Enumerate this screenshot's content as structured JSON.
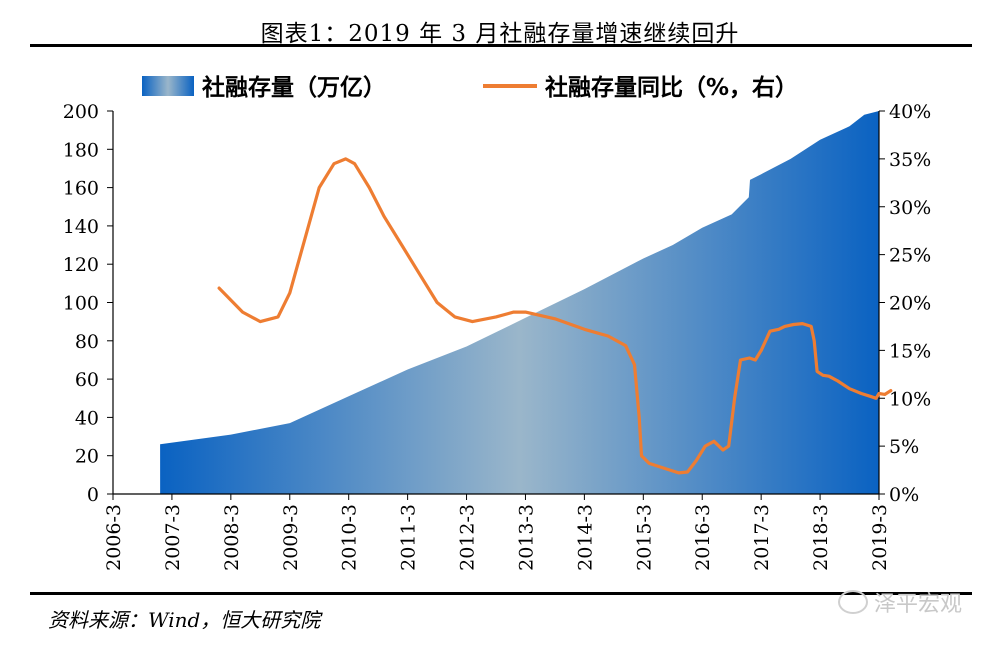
{
  "title": "图表1：2019 年 3 月社融存量增速继续回升",
  "source": "资料来源：Wind，恒大研究院",
  "watermark": "泽平宏观",
  "colors": {
    "area_dark": "#0a62c2",
    "area_light": "#9ab6ca",
    "line": "#ee7d32"
  },
  "chart_data": {
    "type": "area+line",
    "x_ticks": [
      "2006-3",
      "2007-3",
      "2008-3",
      "2009-3",
      "2010-3",
      "2011-3",
      "2012-3",
      "2013-3",
      "2014-3",
      "2015-3",
      "2016-3",
      "2017-3",
      "2018-3",
      "2019-3"
    ],
    "y_left": {
      "ylim": [
        0,
        200
      ],
      "ticks": [
        "0",
        "20",
        "40",
        "60",
        "80",
        "100",
        "120",
        "140",
        "160",
        "180",
        "200"
      ]
    },
    "y_right": {
      "ylim": [
        0,
        40
      ],
      "ticks": [
        "0%",
        "5%",
        "10%",
        "15%",
        "20%",
        "25%",
        "30%",
        "35%",
        "40%"
      ]
    },
    "legend_placement": "top",
    "series": [
      {
        "name": "社融存量（万亿）",
        "axis": "left",
        "kind": "area",
        "points": [
          [
            2006.8,
            26
          ],
          [
            2008.0,
            31
          ],
          [
            2009.0,
            37
          ],
          [
            2010.0,
            51
          ],
          [
            2011.0,
            65
          ],
          [
            2012.0,
            77
          ],
          [
            2013.0,
            92
          ],
          [
            2014.0,
            107
          ],
          [
            2015.0,
            123
          ],
          [
            2015.5,
            130
          ],
          [
            2016.0,
            139
          ],
          [
            2016.5,
            146
          ],
          [
            2016.79,
            155
          ],
          [
            2016.81,
            164
          ],
          [
            2017.0,
            167
          ],
          [
            2017.5,
            175
          ],
          [
            2018.0,
            185
          ],
          [
            2018.5,
            192
          ],
          [
            2018.75,
            198
          ],
          [
            2019.0,
            200
          ]
        ]
      },
      {
        "name": "社融存量同比（%，右）",
        "axis": "right",
        "kind": "line",
        "points": [
          [
            2007.8,
            21.5
          ],
          [
            2008.2,
            19.0
          ],
          [
            2008.5,
            18.0
          ],
          [
            2008.8,
            18.5
          ],
          [
            2009.0,
            21.0
          ],
          [
            2009.25,
            26.5
          ],
          [
            2009.5,
            32.0
          ],
          [
            2009.75,
            34.5
          ],
          [
            2009.95,
            35.0
          ],
          [
            2010.1,
            34.5
          ],
          [
            2010.35,
            32.0
          ],
          [
            2010.6,
            29.0
          ],
          [
            2010.9,
            26.0
          ],
          [
            2011.2,
            23.0
          ],
          [
            2011.5,
            20.0
          ],
          [
            2011.8,
            18.5
          ],
          [
            2012.1,
            18.0
          ],
          [
            2012.5,
            18.5
          ],
          [
            2012.8,
            19.0
          ],
          [
            2013.0,
            19.0
          ],
          [
            2013.5,
            18.3
          ],
          [
            2014.0,
            17.2
          ],
          [
            2014.4,
            16.5
          ],
          [
            2014.7,
            15.5
          ],
          [
            2014.85,
            13.5
          ],
          [
            2014.93,
            8.0
          ],
          [
            2014.97,
            4.0
          ],
          [
            2015.1,
            3.2
          ],
          [
            2015.4,
            2.6
          ],
          [
            2015.6,
            2.2
          ],
          [
            2015.75,
            2.3
          ],
          [
            2015.9,
            3.5
          ],
          [
            2016.05,
            5.0
          ],
          [
            2016.2,
            5.5
          ],
          [
            2016.35,
            4.6
          ],
          [
            2016.45,
            5.0
          ],
          [
            2016.55,
            10.0
          ],
          [
            2016.65,
            14.0
          ],
          [
            2016.8,
            14.2
          ],
          [
            2016.9,
            14.0
          ],
          [
            2017.0,
            15.0
          ],
          [
            2017.15,
            17.0
          ],
          [
            2017.3,
            17.2
          ],
          [
            2017.4,
            17.5
          ],
          [
            2017.55,
            17.7
          ],
          [
            2017.7,
            17.8
          ],
          [
            2017.85,
            17.5
          ],
          [
            2017.9,
            16.0
          ],
          [
            2017.95,
            12.8
          ],
          [
            2018.05,
            12.4
          ],
          [
            2018.15,
            12.3
          ],
          [
            2018.3,
            11.8
          ],
          [
            2018.5,
            11.0
          ],
          [
            2018.7,
            10.5
          ],
          [
            2018.85,
            10.2
          ],
          [
            2018.95,
            10.0
          ],
          [
            2019.0,
            10.5
          ],
          [
            2019.1,
            10.4
          ],
          [
            2019.2,
            10.8
          ]
        ]
      }
    ]
  }
}
